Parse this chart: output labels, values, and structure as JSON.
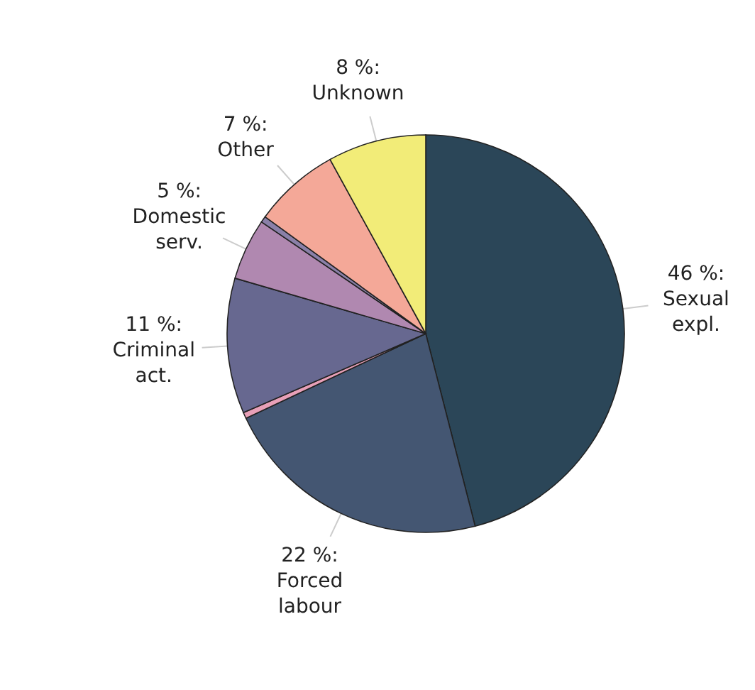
{
  "chart_data": {
    "type": "pie",
    "categories": [
      "Sexual expl.",
      "Forced labour",
      null,
      "Criminal act.",
      "Domestic serv.",
      null,
      "Other",
      "Unknown"
    ],
    "values": [
      46,
      22,
      0.5,
      11,
      5,
      0.5,
      7,
      8
    ],
    "value_labels": [
      "46 %:",
      "22 %:",
      null,
      "11 %:",
      "5 %:",
      null,
      "7 %:",
      "8 %:"
    ],
    "colors": [
      "#2b4658",
      "#445672",
      "#e8a0b8",
      "#676890",
      "#b088b0",
      "#8a80a8",
      "#f4a898",
      "#f2ec78"
    ]
  }
}
